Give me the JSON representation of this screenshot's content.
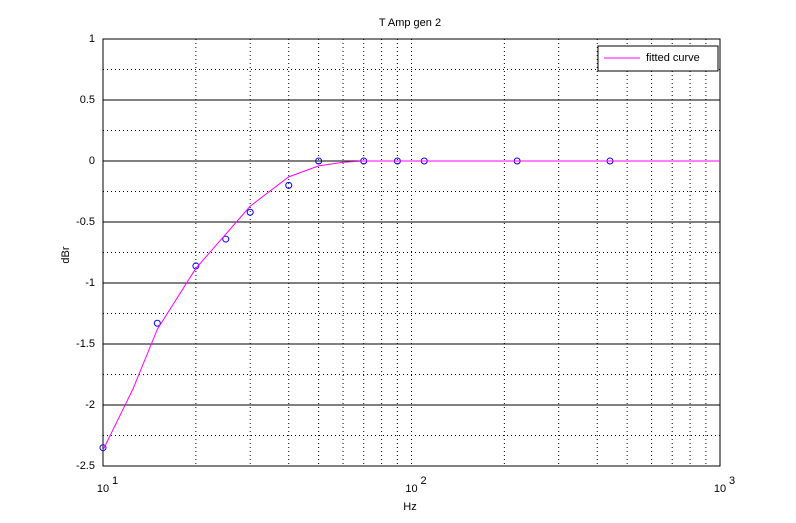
{
  "chart_data": {
    "type": "line",
    "title": "T Amp gen 2",
    "xlabel": "Hz",
    "ylabel": "dBr",
    "xscale": "log",
    "grid": true,
    "legend": "upper right",
    "xlim": [
      10,
      1000
    ],
    "xticks": [
      {
        "value": 10,
        "label": "10",
        "exponent": "1"
      },
      {
        "value": 100,
        "label": "10",
        "exponent": "2"
      },
      {
        "value": 1000,
        "label": "10",
        "exponent": "3"
      }
    ],
    "ylim": [
      -2.5,
      1
    ],
    "yticks": [
      1,
      0.5,
      0,
      -0.5,
      -1,
      -1.5,
      -2,
      -2.5
    ],
    "series": [
      {
        "color": "#0000ff",
        "marker": "circle",
        "x": [
          10,
          15,
          20,
          25,
          30,
          40,
          50,
          70,
          90,
          110,
          220,
          440
        ],
        "values": [
          -2.35,
          -1.33,
          -0.86,
          -0.64,
          -0.42,
          -0.2,
          0,
          0,
          0,
          0,
          0,
          0
        ]
      },
      {
        "name": "fitted curve",
        "color": "#ff00ff",
        "x": [
          10,
          12.5,
          15,
          20,
          25,
          30,
          40,
          50,
          60,
          70,
          100,
          1000
        ],
        "values": [
          -2.37,
          -1.87,
          -1.38,
          -0.88,
          -0.6,
          -0.37,
          -0.13,
          -0.04,
          -0.01,
          0,
          0,
          0
        ]
      }
    ]
  }
}
